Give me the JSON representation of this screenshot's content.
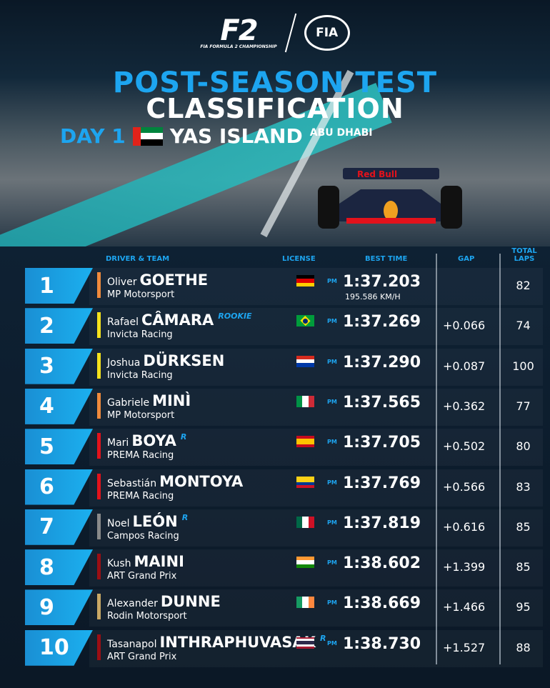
{
  "brand": {
    "f2_logo": "F2",
    "f2_sub": "FIA FORMULA 2 CHAMPIONSHIP",
    "fia_logo": "FIA"
  },
  "title": {
    "line1": "POST-SEASON TEST",
    "line2": "CLASSIFICATION",
    "day": "DAY 1",
    "venue": "YAS ISLAND",
    "city": "ABU DHABI"
  },
  "headers": {
    "driver": "DRIVER & TEAM",
    "license": "LICENSE",
    "best": "BEST TIME",
    "gap": "GAP",
    "laps": "TOTAL LAPS"
  },
  "rows": [
    {
      "pos": "1",
      "first": "Oliver",
      "last": "GOETHE",
      "tag": "",
      "team": "MP Motorsport",
      "color": "#f08a3c",
      "flag": "DE",
      "pm": "PM",
      "time": "1:37.203",
      "speed": "195.586 KM/H",
      "gap": "",
      "laps": "82"
    },
    {
      "pos": "2",
      "first": "Rafael",
      "last": "CÂMARA",
      "tag": "ROOKIE",
      "team": "Invicta Racing",
      "color": "#f5e21c",
      "flag": "BR",
      "pm": "PM",
      "time": "1:37.269",
      "gap": "+0.066",
      "laps": "74"
    },
    {
      "pos": "3",
      "first": "Joshua",
      "last": "DÜRKSEN",
      "tag": "",
      "team": "Invicta Racing",
      "color": "#f5e21c",
      "flag": "PY",
      "pm": "PM",
      "time": "1:37.290",
      "gap": "+0.087",
      "laps": "100"
    },
    {
      "pos": "4",
      "first": "Gabriele",
      "last": "MINÌ",
      "tag": "",
      "team": "MP Motorsport",
      "color": "#f08a3c",
      "flag": "IT",
      "pm": "PM",
      "time": "1:37.565",
      "gap": "+0.362",
      "laps": "77"
    },
    {
      "pos": "5",
      "first": "Mari",
      "last": "BOYA",
      "tag": "R",
      "team": "PREMA Racing",
      "color": "#e3121b",
      "flag": "ES",
      "pm": "PM",
      "time": "1:37.705",
      "gap": "+0.502",
      "laps": "80"
    },
    {
      "pos": "6",
      "first": "Sebastián",
      "last": "MONTOYA",
      "tag": "",
      "team": "PREMA Racing",
      "color": "#e3121b",
      "flag": "CO",
      "pm": "PM",
      "time": "1:37.769",
      "gap": "+0.566",
      "laps": "83"
    },
    {
      "pos": "7",
      "first": "Noel",
      "last": "LEÓN",
      "tag": "R",
      "team": "Campos Racing",
      "color": "#8a8a8a",
      "flag": "MX",
      "pm": "PM",
      "time": "1:37.819",
      "gap": "+0.616",
      "laps": "85"
    },
    {
      "pos": "8",
      "first": "Kush",
      "last": "MAINI",
      "tag": "",
      "team": "ART Grand Prix",
      "color": "#9b0e14",
      "flag": "IN",
      "pm": "PM",
      "time": "1:38.602",
      "gap": "+1.399",
      "laps": "85"
    },
    {
      "pos": "9",
      "first": "Alexander",
      "last": "DUNNE",
      "tag": "",
      "team": "Rodin Motorsport",
      "color": "#c9a865",
      "flag": "IE",
      "pm": "PM",
      "time": "1:38.669",
      "gap": "+1.466",
      "laps": "95"
    },
    {
      "pos": "10",
      "first": "Tasanapol",
      "last": "INTHRAPHUVASAK",
      "tag": "R",
      "team": "ART Grand Prix",
      "color": "#9b0e14",
      "flag": "TH",
      "pm": "PM",
      "time": "1:38.730",
      "gap": "+1.527",
      "laps": "88"
    }
  ]
}
